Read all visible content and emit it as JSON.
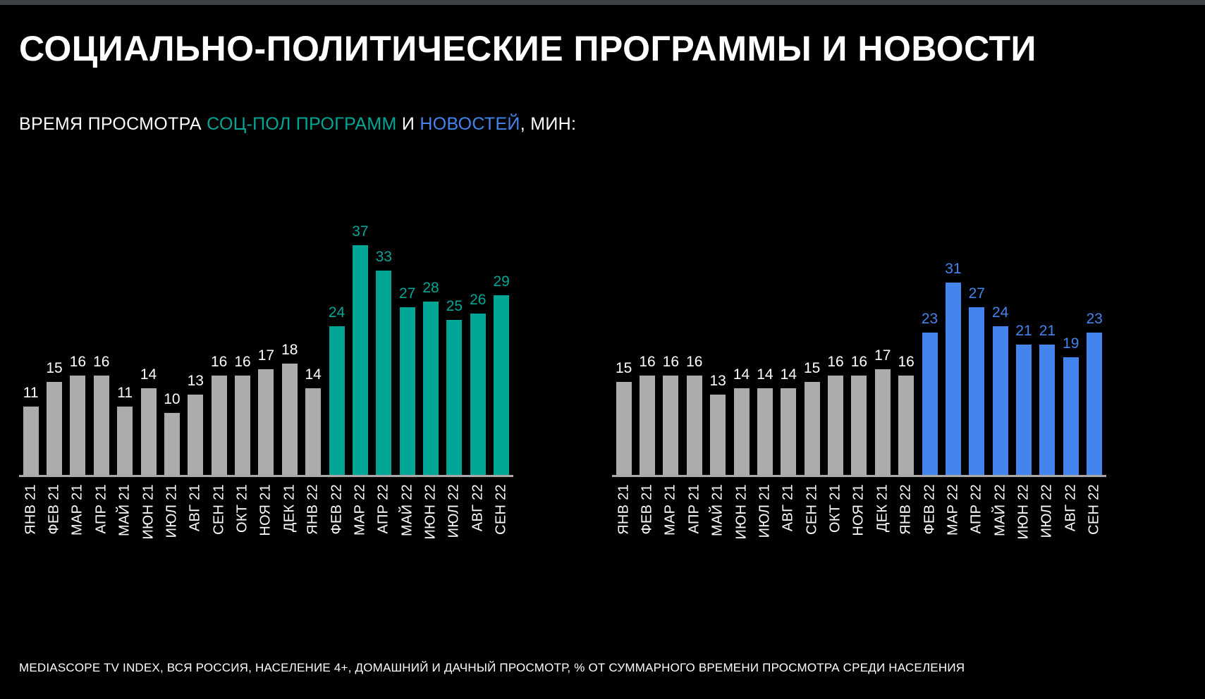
{
  "page": {
    "title": "СОЦИАЛЬНО-ПОЛИТИЧЕСКИЕ ПРОГРАММЫ И НОВОСТИ",
    "subtitle": {
      "prefix": "ВРЕМЯ ПРОСМОТРА ",
      "highlight_socpol": "СОЦ-ПОЛ ПРОГРАММ",
      "middle": " И ",
      "highlight_news": "НОВОСТЕЙ",
      "suffix": ", МИН:"
    },
    "footer": "MEDIASCOPE TV INDEX, ВСЯ РОССИЯ, НАСЕЛЕНИЕ 4+, ДОМАШНИЙ И ДАЧНЫЙ ПРОСМОТР, % ОТ СУММАРНОГО ВРЕМЕНИ ПРОСМОТРА СРЕДИ НАСЕЛЕНИЯ"
  },
  "colors": {
    "background": "#000000",
    "top_strip": "#3d4247",
    "gray_bar": "#acacac",
    "teal": "#00a796",
    "blue": "#4385ec",
    "white_text": "#ffffff",
    "axis_line": "#a9a9a9"
  },
  "chart_data": [
    {
      "type": "bar",
      "name": "soc-pol-programs-viewing-time",
      "categories": [
        "ЯНВ 21",
        "ФЕВ 21",
        "МАР 21",
        "АПР 21",
        "МАЙ 21",
        "ИЮН 21",
        "ИЮЛ 21",
        "АВГ 21",
        "СЕН 21",
        "ОКТ 21",
        "НОЯ 21",
        "ДЕК 21",
        "ЯНВ 22",
        "ФЕВ 22",
        "МАР 22",
        "АПР 22",
        "МАЙ 22",
        "ИЮН 22",
        "ИЮЛ 22",
        "АВГ 22",
        "СЕН 22"
      ],
      "values": [
        11,
        15,
        16,
        16,
        11,
        14,
        10,
        13,
        16,
        16,
        17,
        18,
        14,
        24,
        37,
        33,
        27,
        28,
        25,
        26,
        29
      ],
      "highlight_from_index": 13,
      "base_color_key": "gray_bar",
      "highlight_color_key": "teal",
      "ylim": [
        0,
        40
      ],
      "unit": "мин",
      "grid": "off",
      "legend": "none"
    },
    {
      "type": "bar",
      "name": "news-viewing-time",
      "categories": [
        "ЯНВ 21",
        "ФЕВ 21",
        "МАР 21",
        "АПР 21",
        "МАЙ 21",
        "ИЮН 21",
        "ИЮЛ 21",
        "АВГ 21",
        "СЕН 21",
        "ОКТ 21",
        "НОЯ 21",
        "ДЕК 21",
        "ЯНВ 22",
        "ФЕВ 22",
        "МАР 22",
        "АПР 22",
        "МАЙ 22",
        "ИЮН 22",
        "ИЮЛ 22",
        "АВГ 22",
        "СЕН 22"
      ],
      "values": [
        15,
        16,
        16,
        16,
        13,
        14,
        14,
        14,
        15,
        16,
        16,
        17,
        16,
        23,
        31,
        27,
        24,
        21,
        21,
        19,
        23
      ],
      "highlight_from_index": 13,
      "base_color_key": "gray_bar",
      "highlight_color_key": "blue",
      "ylim": [
        0,
        40
      ],
      "unit": "мин",
      "grid": "off",
      "legend": "none"
    }
  ]
}
